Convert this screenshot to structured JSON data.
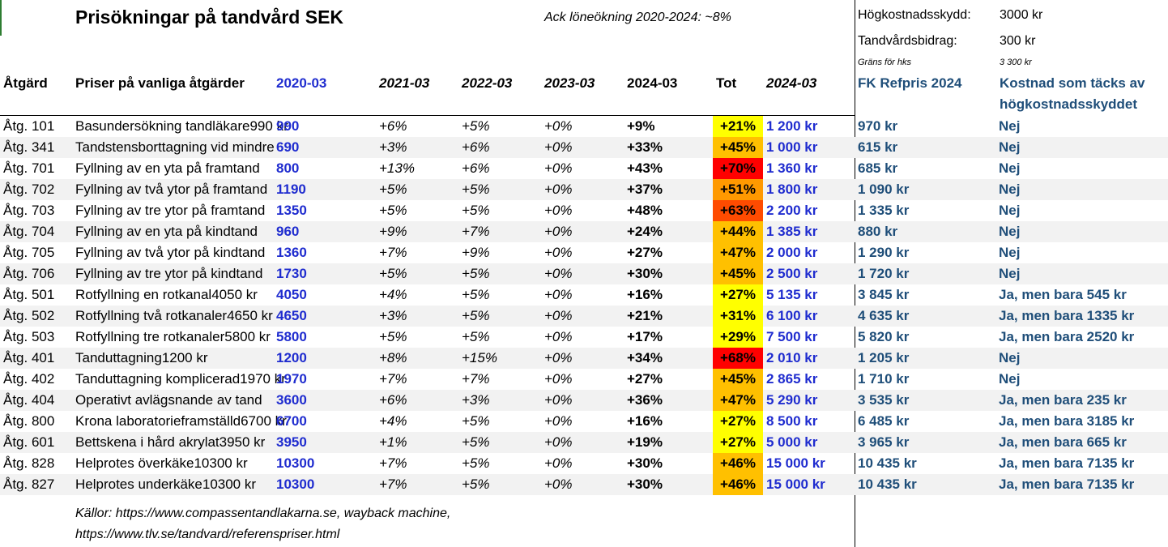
{
  "title": "Prisökningar på tandvård SEK",
  "wage_note": "Ack löneökning 2020-2024: ~8%",
  "side": {
    "hk_label": "Högkostnadsskydd:",
    "hk_value": "3000 kr",
    "bidrag_label": "Tandvårdsbidrag:",
    "bidrag_value": "300 kr",
    "grans_label": "Gräns för hks",
    "grans_value": "3 300 kr"
  },
  "headers": {
    "code": "Åtgärd",
    "name": "Priser på vanliga åtgärder",
    "p2020": "2020-03",
    "y2021": "2021-03",
    "y2022": "2022-03",
    "y2023": "2023-03",
    "y2024": "2024-03",
    "tot": "Tot",
    "p2024": "2024-03",
    "fk": "FK Refpris 2024",
    "hk_line1": "Kostnad som täcks av",
    "hk_line2": "högkostnadsskyddet"
  },
  "colors": {
    "tot_yellow": "#ffff00",
    "tot_gold": "#ffc000",
    "tot_orange": "#ff9900",
    "tot_redorange": "#ff4b00",
    "tot_red": "#ff0000"
  },
  "rows": [
    {
      "code": "Åtg. 101",
      "name": "Basundersökning tandläkare990 kr",
      "p2020": "990",
      "y2021": "+6%",
      "y2022": "+5%",
      "y2023": "+0%",
      "y2024": "+9%",
      "tot": "+21%",
      "tot_color": "#ffff00",
      "p2024": "1 200 kr",
      "fk": "970 kr",
      "hk": "Nej"
    },
    {
      "code": "Åtg. 341",
      "name": "Tandstensborttagning vid mindre",
      "p2020": "690",
      "y2021": "+3%",
      "y2022": "+6%",
      "y2023": "+0%",
      "y2024": "+33%",
      "tot": "+45%",
      "tot_color": "#ffc000",
      "p2024": "1 000 kr",
      "fk": "615 kr",
      "hk": "Nej"
    },
    {
      "code": "Åtg. 701",
      "name": "Fyllning av en yta på framtand",
      "p2020": "800",
      "y2021": "+13%",
      "y2022": "+6%",
      "y2023": "+0%",
      "y2024": "+43%",
      "tot": "+70%",
      "tot_color": "#ff0000",
      "p2024": "1 360 kr",
      "fk": "685 kr",
      "hk": "Nej"
    },
    {
      "code": "Åtg. 702",
      "name": "Fyllning av två ytor på framtand",
      "p2020": "1190",
      "y2021": "+5%",
      "y2022": "+5%",
      "y2023": "+0%",
      "y2024": "+37%",
      "tot": "+51%",
      "tot_color": "#ff9900",
      "p2024": "1 800 kr",
      "fk": "1 090 kr",
      "hk": "Nej"
    },
    {
      "code": "Åtg. 703",
      "name": "Fyllning av tre ytor på framtand",
      "p2020": "1350",
      "y2021": "+5%",
      "y2022": "+5%",
      "y2023": "+0%",
      "y2024": "+48%",
      "tot": "+63%",
      "tot_color": "#ff4b00",
      "p2024": "2 200 kr",
      "fk": "1 335 kr",
      "hk": "Nej"
    },
    {
      "code": "Åtg. 704",
      "name": "Fyllning av en yta på kindtand",
      "p2020": "960",
      "y2021": "+9%",
      "y2022": "+7%",
      "y2023": "+0%",
      "y2024": "+24%",
      "tot": "+44%",
      "tot_color": "#ffc000",
      "p2024": "1 385 kr",
      "fk": "880 kr",
      "hk": "Nej"
    },
    {
      "code": "Åtg. 705",
      "name": "Fyllning av två ytor på kindtand",
      "p2020": "1360",
      "y2021": "+7%",
      "y2022": "+9%",
      "y2023": "+0%",
      "y2024": "+27%",
      "tot": "+47%",
      "tot_color": "#ffc000",
      "p2024": "2 000 kr",
      "fk": "1 290 kr",
      "hk": "Nej"
    },
    {
      "code": "Åtg. 706",
      "name": "Fyllning av tre ytor på kindtand",
      "p2020": "1730",
      "y2021": "+5%",
      "y2022": "+5%",
      "y2023": "+0%",
      "y2024": "+30%",
      "tot": "+45%",
      "tot_color": "#ffc000",
      "p2024": "2 500 kr",
      "fk": "1 720 kr",
      "hk": "Nej"
    },
    {
      "code": "Åtg. 501",
      "name": "Rotfyllning en rotkanal4050 kr",
      "p2020": "4050",
      "y2021": "+4%",
      "y2022": "+5%",
      "y2023": "+0%",
      "y2024": "+16%",
      "tot": "+27%",
      "tot_color": "#ffff00",
      "p2024": "5 135 kr",
      "fk": "3 845 kr",
      "hk": "Ja, men bara 545 kr"
    },
    {
      "code": "Åtg. 502",
      "name": "Rotfyllning två rotkanaler4650 kr",
      "p2020": "4650",
      "y2021": "+3%",
      "y2022": "+5%",
      "y2023": "+0%",
      "y2024": "+21%",
      "tot": "+31%",
      "tot_color": "#ffff00",
      "p2024": "6 100 kr",
      "fk": "4 635 kr",
      "hk": "Ja, men bara 1335 kr"
    },
    {
      "code": "Åtg. 503",
      "name": "Rotfyllning tre rotkanaler5800 kr",
      "p2020": "5800",
      "y2021": "+5%",
      "y2022": "+5%",
      "y2023": "+0%",
      "y2024": "+17%",
      "tot": "+29%",
      "tot_color": "#ffff00",
      "p2024": "7 500 kr",
      "fk": "5 820 kr",
      "hk": "Ja, men bara 2520 kr"
    },
    {
      "code": "Åtg. 401",
      "name": "Tanduttagning1200 kr",
      "p2020": "1200",
      "y2021": "+8%",
      "y2022": "+15%",
      "y2023": "+0%",
      "y2024": "+34%",
      "tot": "+68%",
      "tot_color": "#ff0000",
      "p2024": "2 010 kr",
      "fk": "1 205 kr",
      "hk": "Nej"
    },
    {
      "code": "Åtg. 402",
      "name": "Tanduttagning komplicerad1970 kr",
      "p2020": "1970",
      "y2021": "+7%",
      "y2022": "+7%",
      "y2023": "+0%",
      "y2024": "+27%",
      "tot": "+45%",
      "tot_color": "#ffc000",
      "p2024": "2 865 kr",
      "fk": "1 710 kr",
      "hk": "Nej"
    },
    {
      "code": "Åtg. 404",
      "name": "Operativt avlägsnande av tand",
      "p2020": "3600",
      "y2021": "+6%",
      "y2022": "+3%",
      "y2023": "+0%",
      "y2024": "+36%",
      "tot": "+47%",
      "tot_color": "#ffc000",
      "p2024": "5 290 kr",
      "fk": "3 535 kr",
      "hk": "Ja, men bara 235 kr"
    },
    {
      "code": "Åtg. 800",
      "name": "Krona laboratorieframställd6700 kr",
      "p2020": "6700",
      "y2021": "+4%",
      "y2022": "+5%",
      "y2023": "+0%",
      "y2024": "+16%",
      "tot": "+27%",
      "tot_color": "#ffff00",
      "p2024": "8 500 kr",
      "fk": "6 485 kr",
      "hk": "Ja, men bara 3185 kr"
    },
    {
      "code": "Åtg. 601",
      "name": "Bettskena i hård akrylat3950 kr",
      "p2020": "3950",
      "y2021": "+1%",
      "y2022": "+5%",
      "y2023": "+0%",
      "y2024": "+19%",
      "tot": "+27%",
      "tot_color": "#ffff00",
      "p2024": "5 000 kr",
      "fk": "3 965 kr",
      "hk": "Ja, men bara 665 kr"
    },
    {
      "code": "Åtg. 828",
      "name": "Helprotes överkäke10300 kr",
      "p2020": "10300",
      "y2021": "+7%",
      "y2022": "+5%",
      "y2023": "+0%",
      "y2024": "+30%",
      "tot": "+46%",
      "tot_color": "#ffc000",
      "p2024": "15 000 kr",
      "fk": "10 435 kr",
      "hk": "Ja, men bara 7135 kr"
    },
    {
      "code": "Åtg. 827",
      "name": "Helprotes underkäke10300 kr",
      "p2020": "10300",
      "y2021": "+7%",
      "y2022": "+5%",
      "y2023": "+0%",
      "y2024": "+30%",
      "tot": "+46%",
      "tot_color": "#ffc000",
      "p2024": "15 000 kr",
      "fk": "10 435 kr",
      "hk": "Ja, men bara 7135 kr"
    }
  ],
  "footer": {
    "line1": "Källor: https://www.compassentandlakarna.se,  wayback machine,",
    "line2": "https://www.tlv.se/tandvard/referenspriser.html"
  }
}
